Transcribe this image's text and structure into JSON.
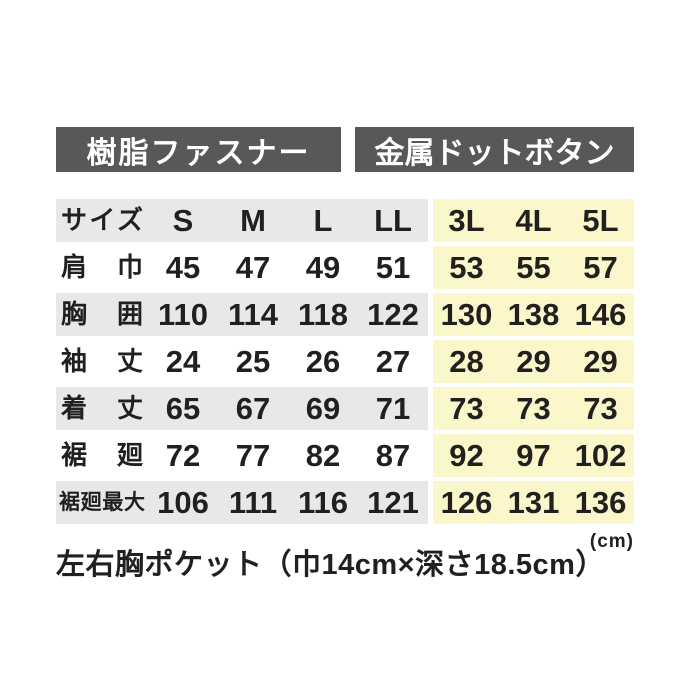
{
  "colors": {
    "header_bar": "#595757",
    "header_bar_text": "#ffffff",
    "row_gray": "#e9e8e8",
    "highlight_yellow": "#fbf7cb",
    "text": "#221f1f",
    "background": "#ffffff"
  },
  "chart_data": {
    "type": "table",
    "title_left": "樹脂ファスナー",
    "title_right": "金属ドットボタン",
    "size_label": "サイズ",
    "categories": [
      "S",
      "M",
      "L",
      "LL",
      "3L",
      "4L",
      "5L"
    ],
    "group_left_sizes": [
      "S",
      "M",
      "L",
      "LL"
    ],
    "group_right_sizes": [
      "3L",
      "4L",
      "5L"
    ],
    "series": [
      {
        "name": "肩巾",
        "values": [
          45,
          47,
          49,
          51,
          53,
          55,
          57
        ]
      },
      {
        "name": "胸囲",
        "values": [
          110,
          114,
          118,
          122,
          130,
          138,
          146
        ]
      },
      {
        "name": "袖丈",
        "values": [
          24,
          25,
          26,
          27,
          28,
          29,
          29
        ]
      },
      {
        "name": "着丈",
        "values": [
          65,
          67,
          69,
          71,
          73,
          73,
          73
        ]
      },
      {
        "name": "裾廻",
        "values": [
          72,
          77,
          82,
          87,
          92,
          97,
          102
        ]
      },
      {
        "name": "裾廻最大",
        "values": [
          106,
          111,
          116,
          121,
          126,
          131,
          136
        ]
      }
    ],
    "note": "左右胸ポケット（巾14cm×深さ18.5cm）",
    "unit": "(cm)",
    "layout": {
      "highlighted_columns": [
        "3L",
        "4L",
        "5L"
      ],
      "grid": "row-banded"
    }
  }
}
